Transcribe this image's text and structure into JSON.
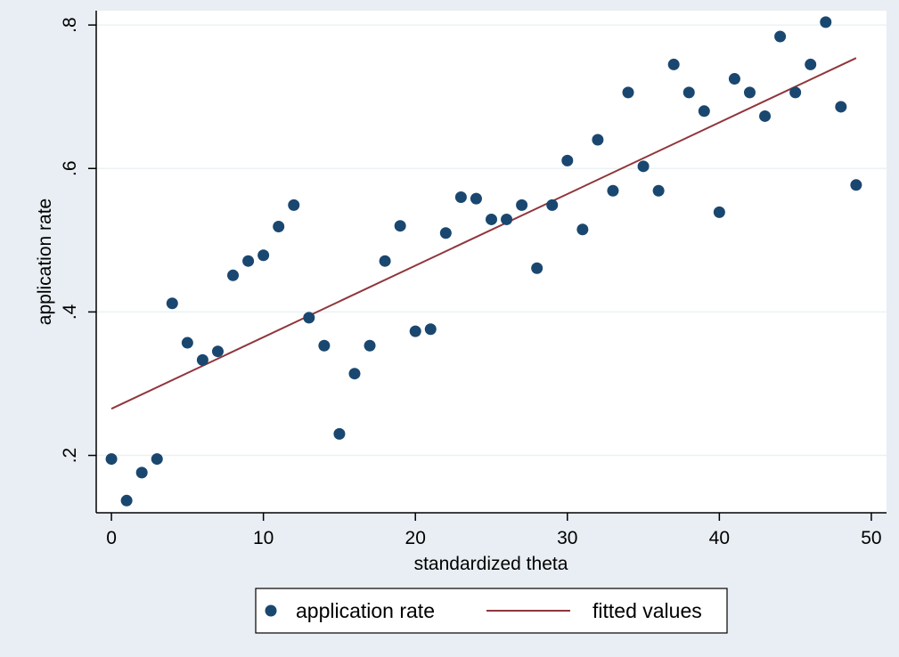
{
  "chart_data": {
    "type": "scatter",
    "title": "",
    "xlabel": "standardized theta",
    "ylabel": "application rate",
    "xlim": [
      -1,
      51
    ],
    "ylim": [
      0.12,
      0.82
    ],
    "xticks": [
      0,
      10,
      20,
      30,
      40,
      50
    ],
    "xtick_labels": [
      "0",
      "10",
      "20",
      "30",
      "40",
      "50"
    ],
    "yticks": [
      0.2,
      0.4,
      0.6,
      0.8
    ],
    "ytick_labels": [
      ".2",
      ".4",
      ".6",
      ".8"
    ],
    "grid": "horizontal",
    "legend_position": "bottom",
    "series": [
      {
        "name": "application rate",
        "kind": "scatter",
        "color": "#1a476f",
        "x": [
          0,
          1,
          2,
          3,
          4,
          5,
          6,
          7,
          8,
          9,
          10,
          11,
          12,
          13,
          14,
          15,
          16,
          17,
          18,
          19,
          20,
          21,
          22,
          23,
          24,
          25,
          26,
          27,
          28,
          29,
          30,
          31,
          32,
          33,
          34,
          35,
          36,
          37,
          38,
          39,
          40,
          41,
          42,
          43,
          44,
          45,
          46,
          47,
          48,
          49
        ],
        "y": [
          0.195,
          0.137,
          0.176,
          0.195,
          0.412,
          0.357,
          0.333,
          0.345,
          0.451,
          0.471,
          0.479,
          0.519,
          0.549,
          0.392,
          0.353,
          0.23,
          0.314,
          0.353,
          0.471,
          0.52,
          0.373,
          0.376,
          0.51,
          0.56,
          0.558,
          0.529,
          0.529,
          0.549,
          0.461,
          0.549,
          0.611,
          0.515,
          0.64,
          0.569,
          0.706,
          0.603,
          0.569,
          0.745,
          0.706,
          0.68,
          0.539,
          0.725,
          0.706,
          0.673,
          0.784,
          0.706,
          0.745,
          0.804,
          0.686,
          0.577
        ]
      },
      {
        "name": "fitted values",
        "kind": "line",
        "color": "#90353b",
        "x": [
          0,
          49
        ],
        "y": [
          0.265,
          0.754
        ]
      }
    ]
  }
}
